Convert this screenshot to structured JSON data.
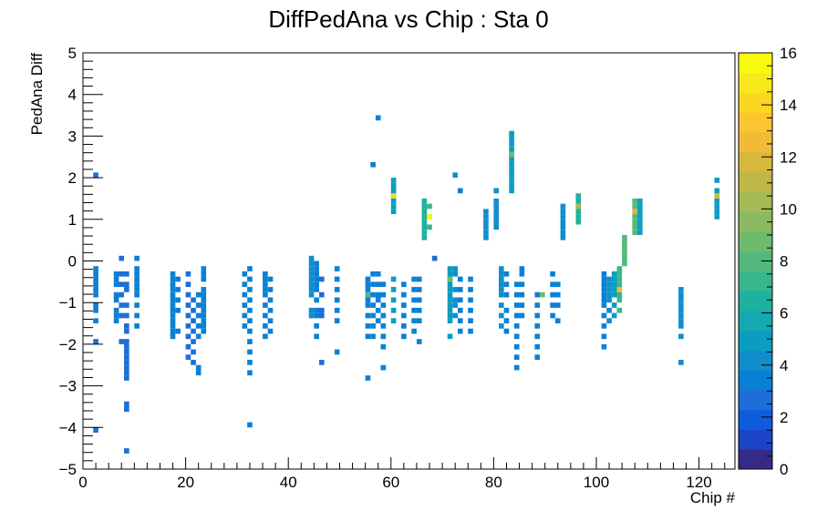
{
  "chart_data": {
    "type": "heatmap",
    "title": "DiffPedAna vs Chip : Sta 0",
    "xlabel": "Chip #",
    "ylabel": "PedAna Diff",
    "xlim": [
      0,
      127
    ],
    "ylim": [
      -5,
      5
    ],
    "xticks": [
      "0",
      "20",
      "40",
      "60",
      "80",
      "100",
      "120"
    ],
    "yticks": [
      "−5",
      "−4",
      "−3",
      "−2",
      "−1",
      "0",
      "1",
      "2",
      "3",
      "4",
      "5"
    ],
    "colorbar": {
      "range": [
        0,
        16
      ],
      "ticks": [
        "0",
        "2",
        "4",
        "6",
        "8",
        "10",
        "12",
        "14",
        "16"
      ],
      "colors": [
        "#352a87",
        "#1c44c6",
        "#0f5cdd",
        "#1d6ed8",
        "#0a80d5",
        "#108ecc",
        "#0b9dc1",
        "#14a9b0",
        "#1fb19f",
        "#3ab68d",
        "#53b97c",
        "#6ebb6e",
        "#8bba61",
        "#a5b955",
        "#bfb746",
        "#d8b83a",
        "#f1bb35",
        "#fcc52f",
        "#f9d722",
        "#f7e91b",
        "#f9fb0e"
      ],
      "legend_position": "right"
    },
    "bin_width": 1,
    "bin_height": 0.125,
    "clusters": [
      {
        "x": 2,
        "y": [
          2.0625,
          -1.9375,
          -4.0625
        ],
        "c": 2
      },
      {
        "x": 2,
        "y": [
          -0.1875,
          -0.3125,
          -0.4375,
          -0.5625,
          -0.6875,
          -0.8125,
          -1.0625,
          -1.1875,
          -1.4375
        ],
        "c": 3
      },
      {
        "x": 6,
        "y": [
          -0.3125,
          -0.4375,
          -0.5625,
          -0.8125,
          -0.9375,
          -1.1875,
          -1.3125,
          -1.4375
        ],
        "c": 3
      },
      {
        "x": 7,
        "y": [
          0.0625,
          -0.3125,
          -0.5625,
          -0.8125,
          -1.0625,
          -1.3125,
          -1.9375
        ],
        "c": 2
      },
      {
        "x": 8,
        "y": [
          -0.3125,
          -0.5625,
          -0.6875,
          -1.0625,
          -1.3125,
          -1.5625,
          -1.6875,
          -1.9375,
          -2.0625,
          -2.1875,
          -2.3125,
          -2.4375,
          -2.5625,
          -2.6875,
          -2.8125,
          -3.4375,
          -3.5625,
          -4.5625
        ],
        "c": 2
      },
      {
        "x": 10,
        "y": [
          0.0625,
          -0.1875,
          -0.3125,
          -0.4375,
          -0.5625,
          -0.6875,
          -0.8125,
          -1.0625,
          -1.3125,
          -1.5625
        ],
        "c": 3
      },
      {
        "x": 17,
        "y": [
          -0.3125,
          -0.4375,
          -0.5625,
          -0.6875,
          -0.8125,
          -0.9375,
          -1.0625,
          -1.1875,
          -1.3125,
          -1.4375,
          -1.5625,
          -1.6875,
          -1.8125
        ],
        "c": 3
      },
      {
        "x": 18,
        "y": [
          -0.4375,
          -0.6875,
          -0.9375,
          -1.1875,
          -1.6875
        ],
        "c": 3
      },
      {
        "x": 20,
        "y": [
          -0.3125,
          -0.5625,
          -0.8125,
          -1.0625,
          -1.3125,
          -1.5625,
          -1.8125,
          -2.0625,
          -2.3125
        ],
        "c": 2
      },
      {
        "x": 21,
        "y": [
          -0.9375,
          -1.1875,
          -1.4375,
          -1.6875,
          -1.9375,
          -2.1875,
          -2.4375
        ],
        "c": 2
      },
      {
        "x": 22,
        "y": [
          -0.8125,
          -1.0625,
          -1.3125,
          -1.5625,
          -1.8125,
          -2.5625,
          -2.6875
        ],
        "c": 3
      },
      {
        "x": 23,
        "y": [
          -0.1875,
          -0.3125,
          -0.4375,
          -0.6875,
          -0.8125,
          -0.9375,
          -1.0625,
          -1.1875,
          -1.3125,
          -1.4375,
          -1.5625,
          -1.6875
        ],
        "c": 3
      },
      {
        "x": 31,
        "y": [
          -0.3125,
          -0.5625,
          -0.8125,
          -1.0625,
          -1.3125,
          -1.5625
        ],
        "c": 3
      },
      {
        "x": 32,
        "y": [
          -0.1875,
          -0.4375,
          -0.6875,
          -0.9375,
          -1.1875,
          -1.4375,
          -1.6875,
          -1.9375,
          -2.1875,
          -2.4375,
          -2.6875,
          -3.9375
        ],
        "c": 3
      },
      {
        "x": 35,
        "y": [
          -0.3125,
          -0.4375,
          -0.5625,
          -0.6875,
          -0.8125,
          -1.0625,
          -1.3125,
          -1.5625,
          -1.8125
        ],
        "c": 3
      },
      {
        "x": 36,
        "y": [
          -0.4375,
          -0.6875,
          -0.9375,
          -1.1875,
          -1.4375,
          -1.6875
        ],
        "c": 3
      },
      {
        "x": 44,
        "y": [
          0.0625,
          -0.0625,
          -0.1875,
          -0.3125,
          -0.4375,
          -0.5625,
          -0.6875,
          -0.8125,
          -1.1875,
          -1.3125
        ],
        "c": 4
      },
      {
        "x": 45,
        "y": [
          -0.0625,
          -0.1875,
          -0.3125,
          -0.4375,
          -0.5625,
          -0.6875,
          -0.9375,
          -1.1875,
          -1.3125,
          -1.5625,
          -1.8125
        ],
        "c": 3
      },
      {
        "x": 46,
        "y": [
          -0.4375,
          -0.8125,
          -1.1875,
          -1.3125,
          -2.4375
        ],
        "c": 2
      },
      {
        "x": 49,
        "y": [
          -0.1875,
          -0.4375,
          -0.6875,
          -0.9375,
          -1.1875,
          -1.4375,
          -2.1875
        ],
        "c": 3
      },
      {
        "x": 55,
        "y": [
          -0.4375,
          -0.5625,
          -0.6875,
          -0.8125,
          -0.9375,
          -1.0625,
          -1.3125,
          -1.5625,
          -1.8125,
          -2.8125
        ],
        "c": 3
      },
      {
        "x": 56,
        "y": [
          2.3125,
          -0.3125,
          -0.5625,
          -0.8125,
          -1.0625,
          -1.3125,
          -1.5625,
          -1.8125
        ],
        "c": 3
      },
      {
        "x": 57,
        "y": [
          3.4375,
          -0.3125,
          -0.5625,
          -0.8125,
          -0.9375,
          -1.1875,
          -1.4375
        ],
        "c": 3
      },
      {
        "x": 58,
        "y": [
          -0.5625,
          -0.8125,
          -1.0625,
          -1.3125,
          -1.5625,
          -1.8125,
          -2.0625,
          -2.5625
        ],
        "c": 3
      },
      {
        "x": 60,
        "y": [
          1.9375,
          1.8125,
          1.6875,
          1.5625,
          1.4375,
          1.3125,
          1.1875,
          -0.4375,
          -0.6875,
          -0.9375,
          -1.1875,
          -1.4375
        ],
        "c": 5
      },
      {
        "x": 62,
        "y": [
          -0.5625,
          -0.8125,
          -1.0625,
          -1.3125,
          -1.5625,
          -1.8125
        ],
        "c": 3
      },
      {
        "x": 64,
        "y": [
          -0.4375,
          -0.6875,
          -0.9375,
          -1.1875,
          -1.4375,
          -1.6875
        ],
        "c": 3
      },
      {
        "x": 65,
        "y": [
          -0.4375,
          -0.6875,
          -0.9375,
          -1.1875,
          -1.4375,
          -1.9375
        ],
        "c": 3
      },
      {
        "x": 66,
        "y": [
          1.4375,
          1.3125,
          1.1875,
          1.0625,
          0.9375,
          0.8125,
          0.6875,
          0.5625
        ],
        "c": 6
      },
      {
        "x": 67,
        "y": [
          1.3125,
          1.0625,
          0.8125
        ],
        "c": 7
      },
      {
        "x": 68,
        "y": [
          0.0625
        ],
        "c": 2
      },
      {
        "x": 71,
        "y": [
          -0.1875,
          -0.3125,
          -0.4375,
          -0.5625,
          -0.6875,
          -0.8125,
          -0.9375,
          -1.0625,
          -1.1875,
          -1.3125,
          -1.4375,
          -1.8125
        ],
        "c": 5
      },
      {
        "x": 72,
        "y": [
          2.0625,
          -0.1875,
          -0.3125,
          -0.6875,
          -0.9375,
          -1.0625,
          -1.3125
        ],
        "c": 4
      },
      {
        "x": 73,
        "y": [
          1.6875,
          -0.4375,
          -0.6875,
          -0.9375,
          -1.1875,
          -1.4375,
          -1.6875
        ],
        "c": 3
      },
      {
        "x": 75,
        "y": [
          -0.4375,
          -0.6875,
          -0.9375,
          -1.1875,
          -1.4375,
          -1.6875
        ],
        "c": 3
      },
      {
        "x": 78,
        "y": [
          1.1875,
          1.0625,
          0.9375,
          0.8125,
          0.6875,
          0.5625
        ],
        "c": 4
      },
      {
        "x": 80,
        "y": [
          1.6875,
          1.4375,
          1.3125,
          1.1875,
          1.0625,
          0.9375,
          0.8125
        ],
        "c": 4
      },
      {
        "x": 81,
        "y": [
          -0.1875,
          -0.3125,
          -0.4375,
          -0.5625,
          -0.6875,
          -0.8125,
          -1.0625,
          -1.3125,
          -1.5625
        ],
        "c": 4
      },
      {
        "x": 82,
        "y": [
          -0.3125,
          -0.5625,
          -0.8125,
          -1.1875,
          -1.4375,
          -1.6875
        ],
        "c": 3
      },
      {
        "x": 83,
        "y": [
          3.0625,
          2.9375,
          2.8125,
          2.6875,
          2.5625,
          2.4375,
          2.3125,
          2.1875,
          2.0625,
          1.9375,
          1.8125,
          1.6875
        ],
        "c": 5
      },
      {
        "x": 84,
        "y": [
          -0.5625,
          -0.8125,
          -1.0625,
          -1.3125,
          -1.5625,
          -1.8125,
          -2.0625,
          -2.3125,
          -2.5625
        ],
        "c": 3
      },
      {
        "x": 85,
        "y": [
          -0.1875,
          -0.3125,
          -0.5625,
          -0.8125,
          -1.0625,
          -1.3125
        ],
        "c": 3
      },
      {
        "x": 88,
        "y": [
          -0.8125,
          -1.0625,
          -1.3125,
          -1.5625,
          -1.8125,
          -2.0625,
          -2.3125
        ],
        "c": 3
      },
      {
        "x": 89,
        "y": [
          -0.8125
        ],
        "c": 9
      },
      {
        "x": 91,
        "y": [
          -0.3125,
          -0.5625,
          -0.8125,
          -1.0625,
          -1.3125
        ],
        "c": 3
      },
      {
        "x": 92,
        "y": [
          -0.5625,
          -0.8125,
          -1.0625,
          -1.4375
        ],
        "c": 3
      },
      {
        "x": 93,
        "y": [
          1.3125,
          1.1875,
          1.0625,
          0.9375,
          0.8125,
          0.6875,
          0.5625
        ],
        "c": 4
      },
      {
        "x": 96,
        "y": [
          1.5625,
          1.4375,
          1.3125,
          1.1875,
          1.0625,
          0.9375
        ],
        "c": 6
      },
      {
        "x": 101,
        "y": [
          -0.3125,
          -0.4375,
          -0.5625,
          -0.6875,
          -0.8125,
          -0.9375,
          -1.0625,
          -1.3125,
          -1.5625,
          -1.8125,
          -2.0625
        ],
        "c": 3
      },
      {
        "x": 102,
        "y": [
          -0.4375,
          -0.5625,
          -0.6875,
          -0.8125,
          -0.9375,
          -1.1875,
          -1.4375
        ],
        "c": 4
      },
      {
        "x": 103,
        "y": [
          -0.3125,
          -0.4375,
          -0.5625,
          -0.6875,
          -0.8125,
          -1.0625,
          -1.3125
        ],
        "c": 5
      },
      {
        "x": 104,
        "y": [
          -0.1875,
          -0.3125,
          -0.4375,
          -0.5625,
          -0.6875,
          -0.8125,
          -0.9375,
          -1.1875
        ],
        "c": 7
      },
      {
        "x": 105,
        "y": [
          0.5625,
          0.4375,
          0.3125,
          0.1875,
          0.0625,
          -0.0625
        ],
        "c": 8
      },
      {
        "x": 107,
        "y": [
          1.4375,
          1.3125,
          1.1875,
          1.0625,
          0.9375,
          0.8125,
          0.6875
        ],
        "c": 8
      },
      {
        "x": 108,
        "y": [
          1.4375,
          1.3125,
          1.1875,
          1.0625,
          0.9375,
          0.8125,
          0.6875
        ],
        "c": 5
      },
      {
        "x": 116,
        "y": [
          -0.6875,
          -0.8125,
          -0.9375,
          -1.0625,
          -1.1875,
          -1.3125,
          -1.4375,
          -1.5625,
          -1.8125,
          -2.4375
        ],
        "c": 4
      },
      {
        "x": 123,
        "y": [
          1.9375,
          1.6875,
          1.5625,
          1.4375,
          1.3125,
          1.1875,
          1.0625
        ],
        "c": 5
      }
    ],
    "hot_bins": [
      {
        "x": 60,
        "y": 1.5625,
        "c": 14
      },
      {
        "x": 67,
        "y": 1.0625,
        "c": 16
      },
      {
        "x": 104,
        "y": -0.6875,
        "c": 13
      },
      {
        "x": 107,
        "y": 1.1875,
        "c": 12
      },
      {
        "x": 123,
        "y": 1.5625,
        "c": 12
      },
      {
        "x": 55,
        "y": -0.8125,
        "c": 8
      },
      {
        "x": 71,
        "y": -0.4375,
        "c": 9
      },
      {
        "x": 83,
        "y": 2.5625,
        "c": 9
      },
      {
        "x": 96,
        "y": 1.3125,
        "c": 10
      }
    ]
  }
}
